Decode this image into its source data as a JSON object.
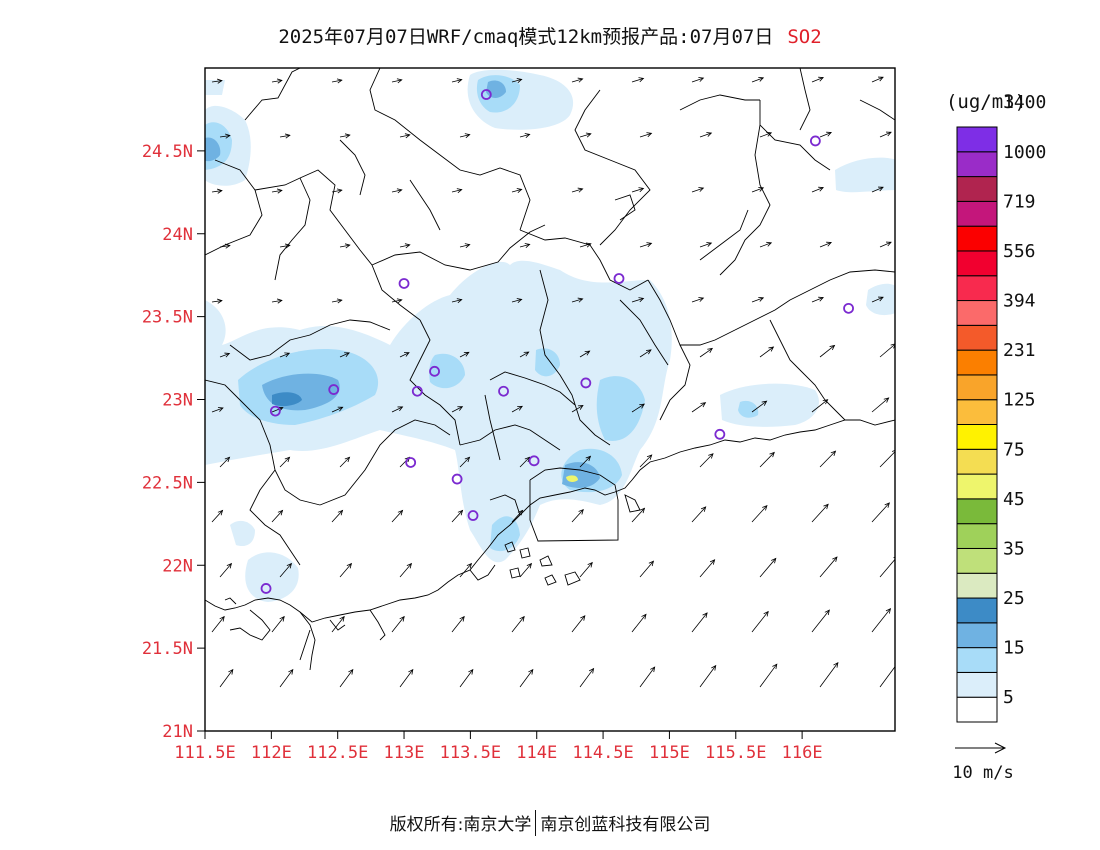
{
  "title": {
    "main": "2025年07月07日WRF/cmaq模式12km预报产品:07月07日",
    "species": "SO2",
    "species_color": "#e0202a"
  },
  "map": {
    "lon_range": [
      111.5,
      116.7
    ],
    "lat_range": [
      21.0,
      25.0
    ],
    "lon_ticks": [
      "111.5E",
      "112E",
      "112.5E",
      "113E",
      "113.5E",
      "114E",
      "114.5E",
      "115E",
      "115.5E",
      "116E"
    ],
    "lon_values": [
      111.5,
      112.0,
      112.5,
      113.0,
      113.5,
      114.0,
      114.5,
      115.0,
      115.5,
      116.0
    ],
    "lat_ticks": [
      "21N",
      "21.5N",
      "22N",
      "22.5N",
      "23N",
      "23.5N",
      "24N",
      "24.5N"
    ],
    "lat_values": [
      21.0,
      21.5,
      22.0,
      22.5,
      23.0,
      23.5,
      24.0,
      24.5
    ],
    "tick_label_color": "#e0303a",
    "stations": [
      [
        113.62,
        24.84
      ],
      [
        116.1,
        24.56
      ],
      [
        113.0,
        23.7
      ],
      [
        114.62,
        23.73
      ],
      [
        116.35,
        23.55
      ],
      [
        113.23,
        23.17
      ],
      [
        113.1,
        23.05
      ],
      [
        112.47,
        23.06
      ],
      [
        112.03,
        22.93
      ],
      [
        113.75,
        23.05
      ],
      [
        114.37,
        23.1
      ],
      [
        115.38,
        22.79
      ],
      [
        113.05,
        22.62
      ],
      [
        113.4,
        22.52
      ],
      [
        113.52,
        22.3
      ],
      [
        113.98,
        22.63
      ],
      [
        111.96,
        21.86
      ]
    ],
    "station_color": "#7b2ad0"
  },
  "legend": {
    "unit": "(ug/m3)",
    "colors": [
      "#ffffff",
      "#dbeefa",
      "#a8dcf8",
      "#6fb2e2",
      "#3d8bc6",
      "#dbeac1",
      "#bfe07a",
      "#9fd15a",
      "#7aba3a",
      "#eef56c",
      "#f4dd52",
      "#fff200",
      "#fbbd3c",
      "#f9a42a",
      "#fb7f00",
      "#f45a2a",
      "#fb6a6a",
      "#f82a4e",
      "#f1002f",
      "#fb0000",
      "#c4167b",
      "#b0244f",
      "#9a2cc8",
      "#7e2ee6"
    ],
    "labels": [
      "5",
      "15",
      "25",
      "35",
      "45",
      "75",
      "125",
      "231",
      "394",
      "556",
      "719",
      "1000",
      "1400"
    ]
  },
  "wind_ref": {
    "label": "10 m/s"
  },
  "footer": {
    "left": "版权所有:南京大学",
    "right": "南京创蓝科技有限公司"
  }
}
